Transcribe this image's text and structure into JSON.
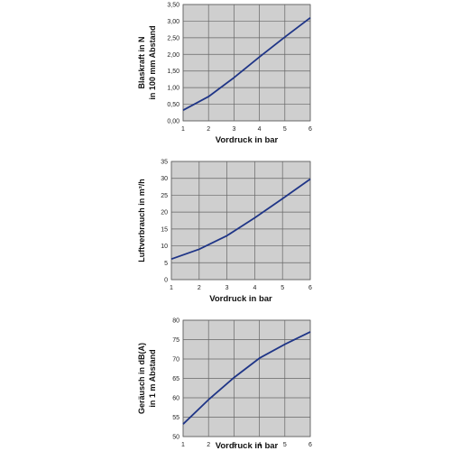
{
  "colors": {
    "plot_bg": "#cfcfcf",
    "grid": "#666666",
    "line": "#1f3587",
    "frame": "#555555"
  },
  "chart_data": [
    {
      "type": "line",
      "xlabel": "Vordruck in bar",
      "ylabel": [
        "Blaskraft in N",
        "in 100 mm Abstand"
      ],
      "x": [
        1,
        2,
        3,
        4,
        5,
        6
      ],
      "xlim": [
        1,
        6
      ],
      "ylim": [
        0,
        3.5
      ],
      "yticks": [
        "0,00",
        "0,50",
        "1,00",
        "1,50",
        "2,00",
        "2,50",
        "3,00",
        "3,50"
      ],
      "xticks": [
        "1",
        "2",
        "3",
        "4",
        "5",
        "6"
      ],
      "grid": true,
      "series": [
        {
          "values": [
            0.32,
            0.73,
            1.3,
            1.92,
            2.52,
            3.1
          ]
        }
      ]
    },
    {
      "type": "line",
      "xlabel": "Vordruck in bar",
      "ylabel": [
        "Luftverbrauch in m³/h"
      ],
      "x": [
        1,
        2,
        3,
        4,
        5,
        6
      ],
      "xlim": [
        1,
        6
      ],
      "ylim": [
        0,
        35
      ],
      "yticks": [
        "0",
        "5",
        "10",
        "15",
        "20",
        "25",
        "30",
        "35"
      ],
      "xticks": [
        "1",
        "2",
        "3",
        "4",
        "5",
        "6"
      ],
      "grid": true,
      "series": [
        {
          "values": [
            6.1,
            9,
            13,
            18.3,
            24,
            29.8
          ]
        }
      ]
    },
    {
      "type": "line",
      "xlabel": "Vordruck in bar",
      "ylabel": [
        "Geräusch in dB(A)",
        "in 1 m Abstand"
      ],
      "x": [
        1,
        2,
        3,
        4,
        5,
        6
      ],
      "xlim": [
        1,
        6
      ],
      "ylim": [
        50,
        80
      ],
      "yticks": [
        "50",
        "55",
        "60",
        "65",
        "70",
        "75",
        "80"
      ],
      "xticks": [
        "1",
        "2",
        "3",
        "4",
        "5",
        "6"
      ],
      "grid": true,
      "series": [
        {
          "values": [
            53.2,
            59.5,
            65.2,
            70.2,
            73.8,
            77
          ]
        }
      ]
    }
  ]
}
